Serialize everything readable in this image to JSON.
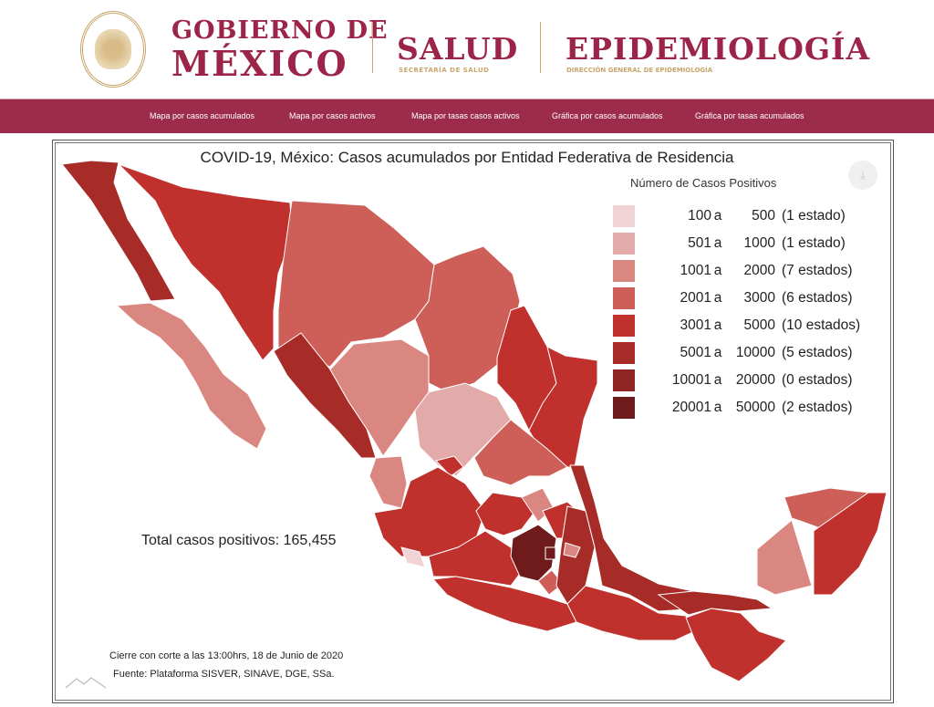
{
  "header": {
    "seal_text": "ESTADOS UNIDOS MEXICANOS",
    "gobierno_line1": "GOBIERNO DE",
    "gobierno_line2": "MÉXICO",
    "salud": "SALUD",
    "salud_sub": "SECRETARÍA DE SALUD",
    "epi": "EPIDEMIOLOGÍA",
    "epi_sub": "DIRECCIÓN GENERAL DE EPIDEMIOLOGÍA"
  },
  "nav": {
    "items": [
      "Mapa por casos acumulados",
      "Mapa por casos activos",
      "Mapa por tasas casos activos",
      "Gráfica por casos acumulados",
      "Gráfica por tasas acumulados"
    ]
  },
  "map": {
    "title": "COVID-19, México: Casos acumulados por Entidad Federativa de Residencia",
    "download_icon": "download-icon",
    "legend_title": "Número de Casos Positivos",
    "legend": [
      {
        "from": "100",
        "to": "500",
        "count": "(1 estado)",
        "color": "#f2d3d5"
      },
      {
        "from": "501",
        "to": "1000",
        "count": "(1 estado)",
        "color": "#e3aaaa"
      },
      {
        "from": "1001",
        "to": "2000",
        "count": "(7 estados)",
        "color": "#da8681"
      },
      {
        "from": "2001",
        "to": "3000",
        "count": "(6 estados)",
        "color": "#cd5f58"
      },
      {
        "from": "3001",
        "to": "5000",
        "count": "(10 estados)",
        "color": "#c0302c"
      },
      {
        "from": "5001",
        "to": "10000",
        "count": "(5 estados)",
        "color": "#a72b27"
      },
      {
        "from": "10001",
        "to": "20000",
        "count": "(0 estados)",
        "color": "#8e2424"
      },
      {
        "from": "20001",
        "to": "50000",
        "count": "(2 estados)",
        "color": "#6f1b1b"
      }
    ],
    "connector": "a",
    "total": "Total casos positivos: 165,455",
    "cutoff": "Cierre con corte a las 13:00hrs, 18 de Junio de 2020",
    "source": "Fuente: Plataforma SISVER, SINAVE, DGE, SSa."
  }
}
